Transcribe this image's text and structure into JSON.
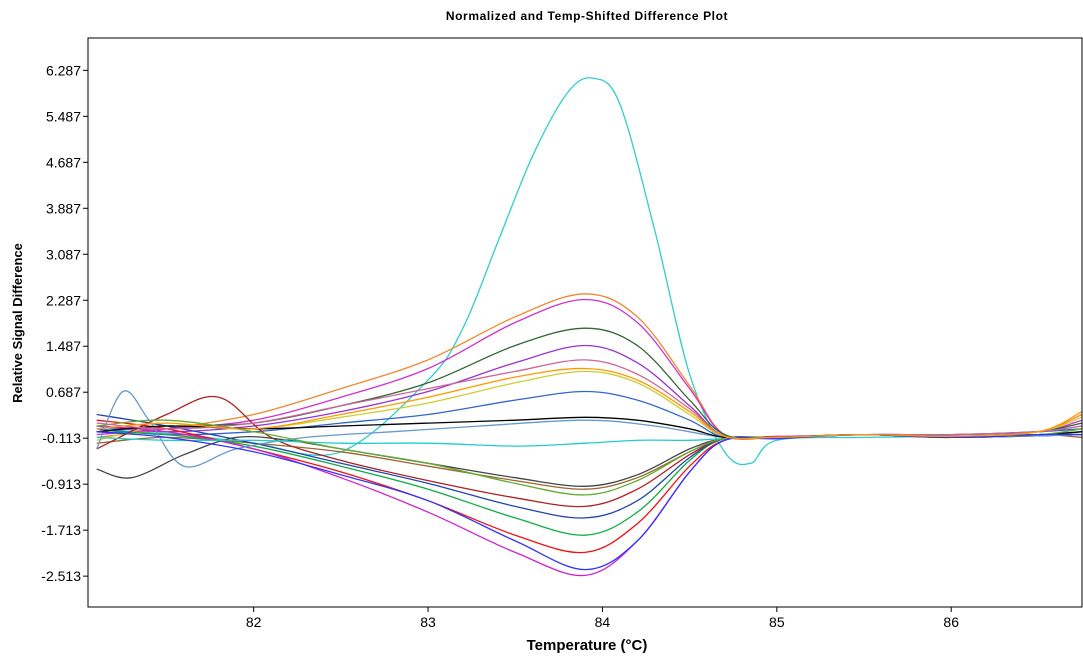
{
  "chart_data": {
    "type": "line",
    "title": "Normalized and Temp-Shifted Difference Plot",
    "xlabel": "Temperature (°C)",
    "ylabel": "Relative Signal Difference",
    "xlim": [
      81.05,
      86.75
    ],
    "ylim": [
      -3.05,
      6.85
    ],
    "x_ticks": [
      82,
      83,
      84,
      85,
      86
    ],
    "x_tick_labels": [
      "82",
      "83",
      "84",
      "85",
      "86"
    ],
    "y_ticks": [
      6.287,
      5.487,
      4.687,
      3.887,
      3.087,
      2.287,
      1.487,
      0.687,
      -0.113,
      -0.913,
      -1.713,
      -2.513
    ],
    "y_tick_labels": [
      "6.287",
      "5.487",
      "4.687",
      "3.887",
      "3.087",
      "2.287",
      "1.487",
      "0.687",
      "-0.113",
      "-0.913",
      "-1.713",
      "-2.513"
    ],
    "grid": false,
    "legend": "none",
    "series": [
      {
        "color": "#33cccc",
        "x": [
          81.1,
          81.3,
          81.6,
          82.0,
          82.5,
          83.0,
          83.2,
          83.4,
          83.6,
          83.8,
          83.95,
          84.1,
          84.3,
          84.5,
          84.7,
          84.85,
          85.0,
          85.5,
          86.0,
          86.5,
          86.75
        ],
        "y": [
          0.1,
          0.0,
          -0.05,
          -0.2,
          -0.35,
          0.9,
          1.8,
          3.3,
          4.8,
          5.9,
          6.15,
          5.7,
          3.5,
          1.0,
          -0.35,
          -0.55,
          -0.15,
          -0.1,
          -0.08,
          -0.05,
          -0.05
        ]
      },
      {
        "color": "#ee8833",
        "x": [
          81.1,
          81.5,
          82.0,
          82.5,
          83.0,
          83.5,
          83.9,
          84.2,
          84.5,
          84.7,
          85.0,
          85.5,
          86.0,
          86.5,
          86.75
        ],
        "y": [
          -0.1,
          0.05,
          0.3,
          0.75,
          1.25,
          2.0,
          2.4,
          2.0,
          0.8,
          -0.05,
          -0.1,
          -0.05,
          -0.1,
          0.0,
          0.3
        ]
      },
      {
        "color": "#cc33cc",
        "x": [
          81.1,
          81.5,
          82.0,
          82.5,
          83.0,
          83.5,
          83.9,
          84.2,
          84.5,
          84.7,
          85.0,
          85.5,
          86.0,
          86.5,
          86.75
        ],
        "y": [
          -0.05,
          0.05,
          0.2,
          0.6,
          1.1,
          1.9,
          2.3,
          1.9,
          0.75,
          -0.05,
          -0.08,
          -0.05,
          -0.05,
          0.0,
          0.2
        ]
      },
      {
        "color": "#336633",
        "x": [
          81.1,
          81.5,
          82.0,
          82.5,
          83.0,
          83.5,
          83.9,
          84.2,
          84.5,
          84.7,
          85.0,
          85.5,
          86.0,
          86.5,
          86.75
        ],
        "y": [
          0.0,
          0.1,
          0.15,
          0.45,
          0.85,
          1.5,
          1.8,
          1.5,
          0.55,
          -0.05,
          -0.1,
          -0.05,
          -0.1,
          0.0,
          0.15
        ]
      },
      {
        "color": "#9933cc",
        "x": [
          81.1,
          81.5,
          82.0,
          82.5,
          83.0,
          83.5,
          83.9,
          84.2,
          84.5,
          84.7,
          85.0,
          85.5,
          86.0,
          86.5,
          86.75
        ],
        "y": [
          0.1,
          0.0,
          0.1,
          0.35,
          0.7,
          1.2,
          1.5,
          1.2,
          0.45,
          -0.08,
          -0.1,
          -0.05,
          -0.05,
          0.0,
          0.1
        ]
      },
      {
        "color": "#cccc33",
        "x": [
          81.1,
          81.5,
          82.0,
          82.5,
          83.0,
          83.5,
          83.9,
          84.2,
          84.5,
          84.7,
          85.0,
          85.5,
          86.0,
          86.5,
          86.75
        ],
        "y": [
          -0.15,
          0.1,
          0.05,
          0.25,
          0.5,
          0.85,
          1.05,
          0.85,
          0.3,
          -0.08,
          -0.1,
          -0.05,
          -0.1,
          0.0,
          0.25
        ]
      },
      {
        "color": "#3366cc",
        "x": [
          81.1,
          81.5,
          82.0,
          82.5,
          83.0,
          83.5,
          83.9,
          84.2,
          84.5,
          84.7,
          85.0,
          85.5,
          86.0,
          86.5,
          86.75
        ],
        "y": [
          0.05,
          -0.05,
          0.0,
          0.15,
          0.3,
          0.55,
          0.7,
          0.55,
          0.2,
          -0.1,
          -0.1,
          -0.05,
          -0.05,
          0.0,
          0.05
        ]
      },
      {
        "color": "#996633",
        "x": [
          81.1,
          81.5,
          82.0,
          82.5,
          83.0,
          83.5,
          83.9,
          84.2,
          84.5,
          84.7,
          85.0,
          85.5,
          86.0,
          86.5,
          86.75
        ],
        "y": [
          -0.2,
          -0.1,
          -0.2,
          -0.35,
          -0.6,
          -0.85,
          -1.0,
          -0.8,
          -0.35,
          -0.12,
          -0.1,
          -0.05,
          -0.1,
          -0.05,
          -0.1
        ]
      },
      {
        "color": "#ee1111",
        "x": [
          81.1,
          81.5,
          82.0,
          82.5,
          83.0,
          83.5,
          83.9,
          84.2,
          84.5,
          84.7,
          85.0,
          85.5,
          86.0,
          86.5,
          86.75
        ],
        "y": [
          0.2,
          0.05,
          -0.3,
          -0.7,
          -1.2,
          -1.8,
          -2.1,
          -1.6,
          -0.6,
          -0.15,
          -0.1,
          -0.05,
          -0.1,
          -0.05,
          -0.05
        ]
      },
      {
        "color": "#11aa44",
        "x": [
          81.1,
          81.5,
          82.0,
          82.5,
          83.0,
          83.5,
          83.9,
          84.2,
          84.5,
          84.7,
          85.0,
          85.5,
          86.0,
          86.5,
          86.75
        ],
        "y": [
          0.0,
          -0.05,
          -0.25,
          -0.6,
          -1.0,
          -1.5,
          -1.8,
          -1.4,
          -0.5,
          -0.12,
          -0.1,
          -0.05,
          -0.08,
          -0.05,
          0.0
        ]
      },
      {
        "color": "#cc22cc",
        "x": [
          81.1,
          81.5,
          82.0,
          82.5,
          83.0,
          83.5,
          83.9,
          84.2,
          84.5,
          84.7,
          85.0,
          85.5,
          86.0,
          86.5,
          86.75
        ],
        "y": [
          0.1,
          0.0,
          -0.3,
          -0.8,
          -1.4,
          -2.1,
          -2.5,
          -1.9,
          -0.7,
          -0.15,
          -0.12,
          -0.05,
          -0.1,
          -0.05,
          -0.05
        ]
      },
      {
        "color": "#2244aa",
        "x": [
          81.1,
          81.5,
          82.0,
          82.5,
          83.0,
          83.5,
          83.9,
          84.2,
          84.5,
          84.7,
          85.0,
          85.5,
          86.0,
          86.5,
          86.75
        ],
        "y": [
          0.3,
          0.1,
          -0.2,
          -0.55,
          -0.9,
          -1.3,
          -1.5,
          -1.2,
          -0.45,
          -0.12,
          -0.1,
          -0.05,
          -0.1,
          -0.05,
          -0.05
        ]
      },
      {
        "color": "#aa2222",
        "x": [
          81.1,
          81.5,
          81.8,
          82.1,
          82.5,
          83.0,
          83.5,
          83.9,
          84.2,
          84.5,
          84.7,
          85.0,
          85.5,
          86.0,
          86.75
        ],
        "y": [
          -0.3,
          0.3,
          0.6,
          -0.1,
          -0.5,
          -0.85,
          -1.15,
          -1.3,
          -1.0,
          -0.4,
          -0.12,
          -0.1,
          -0.05,
          -0.1,
          -0.05
        ]
      },
      {
        "color": "#444444",
        "x": [
          81.1,
          81.3,
          81.6,
          81.9,
          82.2,
          82.5,
          83.0,
          83.5,
          83.9,
          84.2,
          84.5,
          84.7,
          85.0,
          85.5,
          86.0,
          86.75
        ],
        "y": [
          -0.65,
          -0.8,
          -0.4,
          -0.1,
          -0.15,
          -0.3,
          -0.55,
          -0.8,
          -0.95,
          -0.75,
          -0.3,
          -0.12,
          -0.1,
          -0.05,
          -0.1,
          -0.05
        ]
      },
      {
        "color": "#6699cc",
        "x": [
          81.1,
          81.25,
          81.4,
          81.6,
          81.9,
          82.3,
          82.8,
          83.3,
          83.9,
          84.3,
          84.7,
          85.0,
          85.5,
          86.0,
          86.75
        ],
        "y": [
          -0.3,
          0.7,
          0.2,
          -0.6,
          -0.3,
          -0.1,
          0.0,
          0.1,
          0.2,
          0.1,
          -0.1,
          -0.1,
          -0.05,
          -0.1,
          -0.05
        ]
      },
      {
        "color": "#22cccc",
        "x": [
          81.1,
          81.5,
          82.0,
          82.5,
          83.0,
          83.5,
          83.9,
          84.2,
          84.5,
          84.7,
          85.0,
          85.5,
          86.0,
          86.5,
          86.75
        ],
        "y": [
          -0.1,
          -0.15,
          -0.15,
          -0.2,
          -0.2,
          -0.25,
          -0.2,
          -0.15,
          -0.15,
          -0.12,
          -0.1,
          -0.05,
          -0.1,
          -0.05,
          -0.05
        ]
      },
      {
        "color": "#000000",
        "x": [
          81.1,
          81.5,
          82.0,
          82.5,
          83.0,
          83.5,
          83.9,
          84.2,
          84.5,
          84.7,
          85.0,
          85.5,
          86.0,
          86.5,
          86.75
        ],
        "y": [
          0.0,
          0.1,
          0.05,
          0.1,
          0.15,
          0.2,
          0.25,
          0.2,
          0.05,
          -0.1,
          -0.1,
          -0.05,
          -0.1,
          -0.05,
          0.0
        ]
      },
      {
        "color": "#66aa33",
        "x": [
          81.1,
          81.5,
          82.0,
          82.5,
          83.0,
          83.5,
          83.9,
          84.2,
          84.5,
          84.7,
          85.0,
          85.5,
          86.0,
          86.5,
          86.75
        ],
        "y": [
          0.1,
          0.2,
          0.0,
          -0.3,
          -0.55,
          -0.9,
          -1.1,
          -0.85,
          -0.35,
          -0.12,
          -0.1,
          -0.05,
          -0.08,
          -0.05,
          0.05
        ]
      },
      {
        "color": "#cc6699",
        "x": [
          81.1,
          81.5,
          82.0,
          82.5,
          83.0,
          83.5,
          83.9,
          84.2,
          84.5,
          84.7,
          85.0,
          85.5,
          86.0,
          86.5,
          86.75
        ],
        "y": [
          0.15,
          0.05,
          0.15,
          0.45,
          0.75,
          1.05,
          1.25,
          1.0,
          0.4,
          -0.08,
          -0.1,
          -0.05,
          -0.05,
          0.0,
          0.1
        ]
      },
      {
        "color": "#3333ff",
        "x": [
          81.1,
          81.5,
          82.0,
          82.5,
          83.0,
          83.5,
          83.9,
          84.2,
          84.5,
          84.7,
          85.0,
          85.5,
          86.0,
          86.5,
          86.75
        ],
        "y": [
          0.0,
          -0.1,
          -0.35,
          -0.75,
          -1.2,
          -1.9,
          -2.4,
          -1.9,
          -0.7,
          -0.15,
          -0.12,
          -0.05,
          -0.1,
          -0.05,
          -0.05
        ]
      },
      {
        "color": "#ff9900",
        "x": [
          81.1,
          81.5,
          82.0,
          82.5,
          83.0,
          83.5,
          83.9,
          84.2,
          84.5,
          84.7,
          85.0,
          85.5,
          86.0,
          86.5,
          86.75
        ],
        "y": [
          0.05,
          0.15,
          0.05,
          0.3,
          0.6,
          0.95,
          1.1,
          0.9,
          0.35,
          -0.08,
          -0.1,
          -0.05,
          -0.08,
          0.0,
          0.35
        ]
      }
    ]
  }
}
